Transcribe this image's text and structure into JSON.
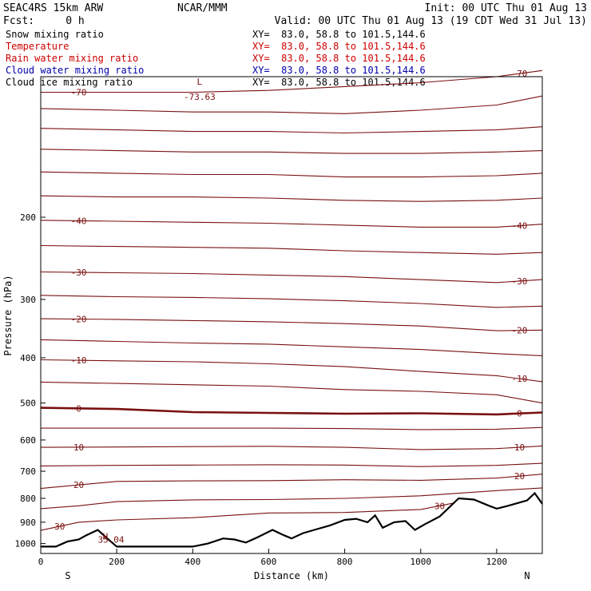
{
  "header": {
    "model": "SEAC4RS 15km ARW",
    "org": "NCAR/MMM",
    "init": "Init: 00 UTC Thu 01 Aug 13",
    "fcst": "Fcst:     0 h",
    "valid": "Valid: 00 UTC Thu 01 Aug 13 (19 CDT Wed 31 Jul 13)"
  },
  "fields": [
    {
      "name": "Snow mixing ratio",
      "xy": "XY=  83.0, 58.8 to 101.5,144.6",
      "color": "#000000"
    },
    {
      "name": "Temperature",
      "xy": "XY=  83.0, 58.8 to 101.5,144.6",
      "color": "#cc0000"
    },
    {
      "name": "Rain water mixing ratio",
      "xy": "XY=  83.0, 58.8 to 101.5,144.6",
      "color": "#cc0000"
    },
    {
      "name": "Cloud water mixing ratio",
      "xy": "XY=  83.0, 58.8 to 101.5,144.6",
      "color": "#0000aa"
    },
    {
      "name": "Cloud ice mixing ratio",
      "xy": "XY=  83.0, 58.8 to 101.5,144.6",
      "color": "#000000"
    }
  ],
  "chart_data": {
    "type": "line",
    "xlabel": "Distance (km)",
    "ylabel": "Pressure (hPa)",
    "xlim": [
      0,
      1320
    ],
    "ylim": [
      1050,
      100
    ],
    "y_scale": "log",
    "x_ticks": [
      0,
      200,
      400,
      600,
      800,
      1000,
      1200
    ],
    "y_ticks": [
      200,
      300,
      400,
      500,
      600,
      700,
      800,
      900,
      1000
    ],
    "end_labels": {
      "left": "S",
      "right": "N"
    },
    "line_color": "#7a1010",
    "terrain_color": "#000000",
    "isotherms": [
      {
        "value": -70,
        "label": "-70",
        "points": [
          [
            0,
            108
          ],
          [
            200,
            108
          ],
          [
            400,
            108
          ],
          [
            600,
            107
          ],
          [
            800,
            105
          ],
          [
            1000,
            103
          ],
          [
            1200,
            100
          ],
          [
            1320,
            97
          ]
        ]
      },
      {
        "value": -65,
        "points": [
          [
            0,
            117
          ],
          [
            200,
            118
          ],
          [
            400,
            119
          ],
          [
            600,
            119
          ],
          [
            800,
            120
          ],
          [
            1000,
            118
          ],
          [
            1200,
            115
          ],
          [
            1320,
            110
          ]
        ]
      },
      {
        "value": -60,
        "points": [
          [
            0,
            129
          ],
          [
            200,
            130
          ],
          [
            400,
            131
          ],
          [
            600,
            131
          ],
          [
            800,
            132
          ],
          [
            1000,
            131
          ],
          [
            1200,
            130
          ],
          [
            1320,
            128
          ]
        ]
      },
      {
        "value": -55,
        "points": [
          [
            0,
            143
          ],
          [
            200,
            144
          ],
          [
            400,
            145
          ],
          [
            600,
            145
          ],
          [
            800,
            146
          ],
          [
            1000,
            146
          ],
          [
            1200,
            145
          ],
          [
            1320,
            144
          ]
        ]
      },
      {
        "value": -50,
        "points": [
          [
            0,
            160
          ],
          [
            200,
            161
          ],
          [
            400,
            162
          ],
          [
            600,
            162
          ],
          [
            800,
            164
          ],
          [
            1000,
            164
          ],
          [
            1200,
            163
          ],
          [
            1320,
            161
          ]
        ]
      },
      {
        "value": -45,
        "points": [
          [
            0,
            180
          ],
          [
            200,
            181
          ],
          [
            400,
            181
          ],
          [
            600,
            182
          ],
          [
            800,
            184
          ],
          [
            1000,
            185
          ],
          [
            1200,
            184
          ],
          [
            1320,
            182
          ]
        ]
      },
      {
        "value": -40,
        "label": "-40",
        "points": [
          [
            0,
            203
          ],
          [
            200,
            204
          ],
          [
            400,
            205
          ],
          [
            600,
            206
          ],
          [
            800,
            208
          ],
          [
            1000,
            210
          ],
          [
            1200,
            210
          ],
          [
            1320,
            207
          ]
        ]
      },
      {
        "value": -35,
        "points": [
          [
            0,
            230
          ],
          [
            200,
            231
          ],
          [
            400,
            232
          ],
          [
            600,
            233
          ],
          [
            800,
            236
          ],
          [
            1000,
            238
          ],
          [
            1200,
            240
          ],
          [
            1320,
            238
          ]
        ]
      },
      {
        "value": -30,
        "label": "-30",
        "points": [
          [
            0,
            262
          ],
          [
            200,
            263
          ],
          [
            400,
            264
          ],
          [
            600,
            266
          ],
          [
            800,
            268
          ],
          [
            1000,
            272
          ],
          [
            1200,
            276
          ],
          [
            1320,
            272
          ]
        ]
      },
      {
        "value": -25,
        "points": [
          [
            0,
            294
          ],
          [
            200,
            296
          ],
          [
            400,
            297
          ],
          [
            600,
            299
          ],
          [
            800,
            302
          ],
          [
            1000,
            306
          ],
          [
            1200,
            312
          ],
          [
            1320,
            310
          ]
        ]
      },
      {
        "value": -20,
        "label": "-20",
        "points": [
          [
            0,
            330
          ],
          [
            200,
            331
          ],
          [
            400,
            333
          ],
          [
            600,
            335
          ],
          [
            800,
            338
          ],
          [
            1000,
            342
          ],
          [
            1200,
            350
          ],
          [
            1320,
            349
          ]
        ]
      },
      {
        "value": -15,
        "points": [
          [
            0,
            366
          ],
          [
            200,
            369
          ],
          [
            400,
            372
          ],
          [
            600,
            374
          ],
          [
            800,
            379
          ],
          [
            1000,
            384
          ],
          [
            1200,
            392
          ],
          [
            1320,
            396
          ]
        ]
      },
      {
        "value": -10,
        "label": "-10",
        "points": [
          [
            0,
            404
          ],
          [
            200,
            406
          ],
          [
            400,
            408
          ],
          [
            600,
            412
          ],
          [
            800,
            418
          ],
          [
            1000,
            428
          ],
          [
            1200,
            437
          ],
          [
            1320,
            450
          ]
        ]
      },
      {
        "value": -5,
        "points": [
          [
            0,
            451
          ],
          [
            200,
            454
          ],
          [
            400,
            457
          ],
          [
            600,
            460
          ],
          [
            800,
            468
          ],
          [
            1000,
            472
          ],
          [
            1200,
            480
          ],
          [
            1320,
            500
          ]
        ]
      },
      {
        "value": 0,
        "label": "0",
        "bold": true,
        "points": [
          [
            0,
            512
          ],
          [
            200,
            515
          ],
          [
            400,
            523
          ],
          [
            600,
            525
          ],
          [
            800,
            527
          ],
          [
            1000,
            526
          ],
          [
            1200,
            529
          ],
          [
            1320,
            524
          ]
        ]
      },
      {
        "value": 5,
        "points": [
          [
            0,
            566
          ],
          [
            200,
            566
          ],
          [
            400,
            566
          ],
          [
            600,
            566
          ],
          [
            800,
            567
          ],
          [
            1000,
            570
          ],
          [
            1200,
            569
          ],
          [
            1320,
            564
          ]
        ]
      },
      {
        "value": 10,
        "label": "10",
        "points": [
          [
            0,
            622
          ],
          [
            200,
            621
          ],
          [
            400,
            620
          ],
          [
            600,
            619
          ],
          [
            800,
            622
          ],
          [
            1000,
            629
          ],
          [
            1200,
            626
          ],
          [
            1320,
            618
          ]
        ]
      },
      {
        "value": 15,
        "points": [
          [
            0,
            682
          ],
          [
            200,
            680
          ],
          [
            400,
            679
          ],
          [
            600,
            678
          ],
          [
            800,
            679
          ],
          [
            1000,
            684
          ],
          [
            1200,
            680
          ],
          [
            1320,
            673
          ]
        ]
      },
      {
        "value": 20,
        "label": "20",
        "points": [
          [
            0,
            762
          ],
          [
            200,
            736
          ],
          [
            400,
            734
          ],
          [
            600,
            733
          ],
          [
            800,
            730
          ],
          [
            1000,
            732
          ],
          [
            1200,
            724
          ],
          [
            1320,
            710
          ]
        ]
      },
      {
        "value": 25,
        "points": [
          [
            0,
            842
          ],
          [
            100,
            830
          ],
          [
            200,
            813
          ],
          [
            400,
            806
          ],
          [
            600,
            805
          ],
          [
            800,
            800
          ],
          [
            1000,
            790
          ],
          [
            1200,
            770
          ],
          [
            1320,
            760
          ]
        ]
      },
      {
        "value": 30,
        "label": "30",
        "points": [
          [
            0,
            937
          ],
          [
            100,
            900
          ],
          [
            200,
            890
          ],
          [
            400,
            880
          ],
          [
            600,
            860
          ],
          [
            800,
            858
          ],
          [
            1000,
            845
          ],
          [
            1100,
            815
          ]
        ]
      }
    ],
    "terrain": [
      [
        0,
        1015
      ],
      [
        40,
        1015
      ],
      [
        70,
        990
      ],
      [
        100,
        980
      ],
      [
        120,
        960
      ],
      [
        150,
        935
      ],
      [
        175,
        975
      ],
      [
        200,
        1015
      ],
      [
        400,
        1015
      ],
      [
        440,
        1000
      ],
      [
        480,
        975
      ],
      [
        510,
        980
      ],
      [
        540,
        995
      ],
      [
        570,
        970
      ],
      [
        610,
        935
      ],
      [
        640,
        960
      ],
      [
        660,
        975
      ],
      [
        690,
        950
      ],
      [
        720,
        935
      ],
      [
        760,
        915
      ],
      [
        800,
        890
      ],
      [
        830,
        885
      ],
      [
        860,
        900
      ],
      [
        880,
        870
      ],
      [
        900,
        925
      ],
      [
        930,
        900
      ],
      [
        960,
        895
      ],
      [
        985,
        935
      ],
      [
        1010,
        910
      ],
      [
        1050,
        875
      ],
      [
        1100,
        800
      ],
      [
        1140,
        805
      ],
      [
        1180,
        830
      ],
      [
        1200,
        842
      ],
      [
        1230,
        830
      ],
      [
        1280,
        808
      ],
      [
        1300,
        780
      ],
      [
        1320,
        822
      ]
    ],
    "annotations": [
      {
        "text": "H",
        "x": 170,
        "p": 980,
        "color": "#7a1010"
      },
      {
        "text": "35.04",
        "x": 185,
        "p": 996,
        "color": "#7a1010"
      },
      {
        "text": "L",
        "x": 418,
        "p": 104,
        "color": "#7a1010"
      },
      {
        "text": "-73.63",
        "x": 418,
        "p": 112,
        "color": "#7a1010"
      }
    ]
  }
}
